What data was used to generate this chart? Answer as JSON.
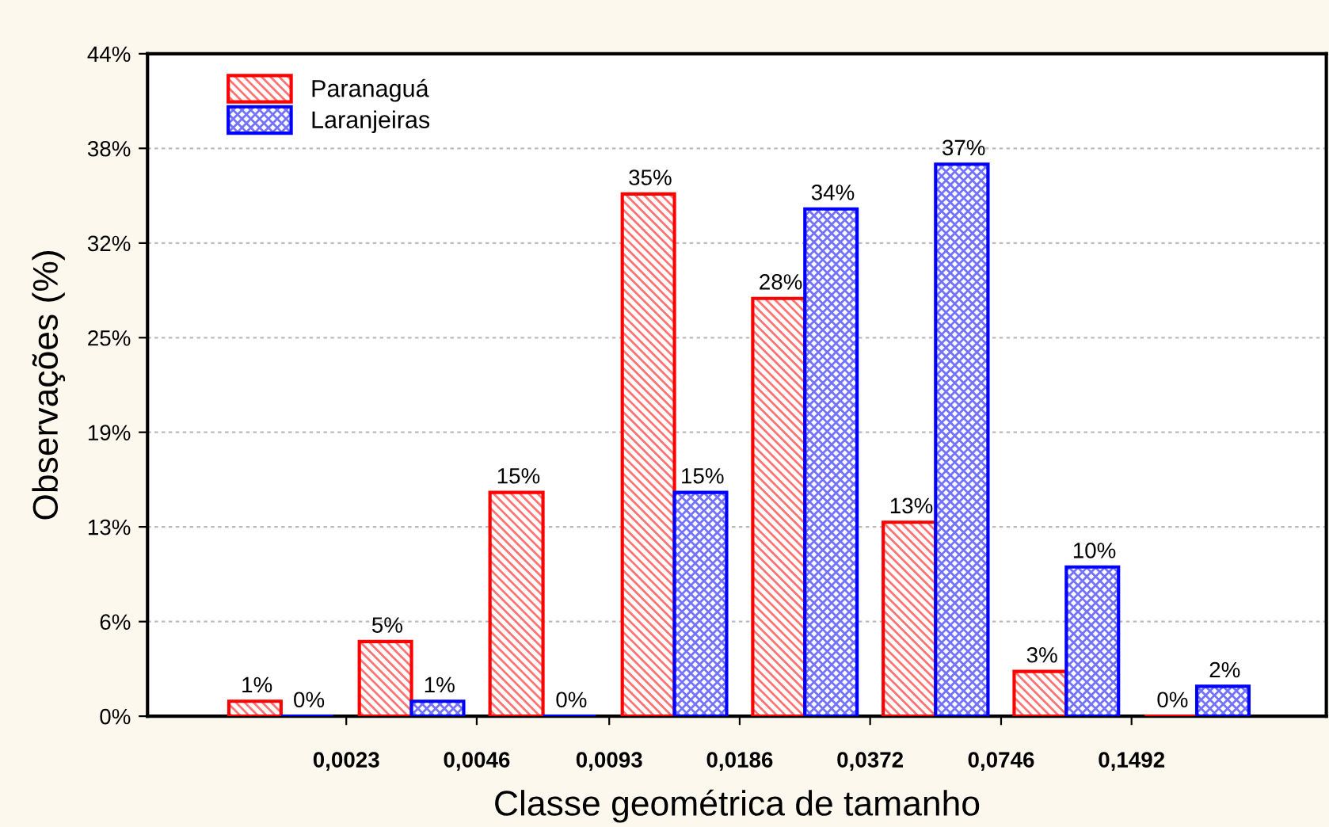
{
  "chart_data": {
    "type": "histogram",
    "xlabel": "Classe geométrica de tamanho",
    "ylabel": "Observações (%)",
    "bins": [
      0.00115,
      0.0023,
      0.0046,
      0.0093,
      0.0186,
      0.0372,
      0.0746,
      0.1492,
      0.2984
    ],
    "series": [
      {
        "name": "Paranaguá",
        "color": "#ff0000",
        "values": [
          1,
          5,
          15,
          35,
          28,
          13,
          3,
          0
        ],
        "value_labels": [
          "1%",
          "5%",
          "15%",
          "35%",
          "28%",
          "13%",
          "3%",
          "0%"
        ]
      },
      {
        "name": "Laranjeiras",
        "color": "#0000ff",
        "values": [
          0,
          1,
          0,
          15,
          34,
          37,
          10,
          2
        ],
        "value_labels": [
          "0%",
          "1%",
          "0%",
          "15%",
          "34%",
          "37%",
          "10%",
          "2%"
        ]
      }
    ],
    "log": "x",
    "xlim": [
      0.0008,
      0.42
    ],
    "xticks": [
      {
        "value": 0.0023,
        "label": "0,0023"
      },
      {
        "value": 0.0046,
        "label": "0,0046"
      },
      {
        "value": 0.0093,
        "label": "0,0093"
      },
      {
        "value": 0.0186,
        "label": "0,0186"
      },
      {
        "value": 0.0372,
        "label": "0,0372"
      },
      {
        "value": 0.0746,
        "label": "0,0746"
      },
      {
        "value": 0.1492,
        "label": "0,1492"
      }
    ],
    "ylim": [
      0,
      44.4
    ],
    "yticks": [
      {
        "value": 0,
        "label": "0%"
      },
      {
        "value": 6.34,
        "label": "6%"
      },
      {
        "value": 12.69,
        "label": "13%"
      },
      {
        "value": 19.03,
        "label": "19%"
      },
      {
        "value": 25.37,
        "label": "25%"
      },
      {
        "value": 31.71,
        "label": "32%"
      },
      {
        "value": 38.06,
        "label": "38%"
      },
      {
        "value": 44.4,
        "label": "44%"
      }
    ],
    "grid": "y",
    "legend": "top left"
  }
}
